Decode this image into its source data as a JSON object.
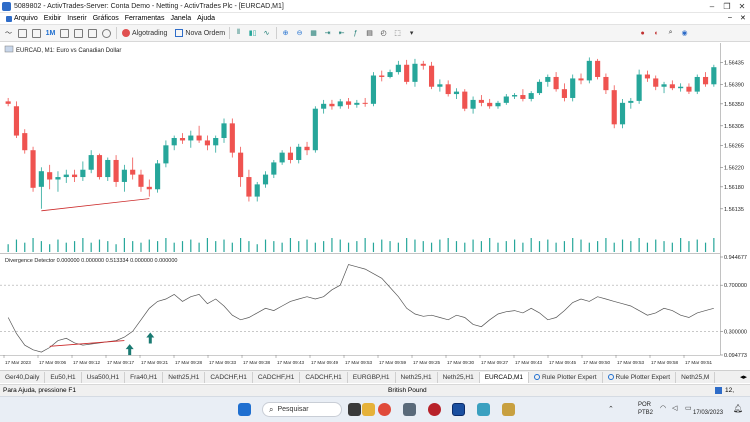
{
  "window": {
    "title": "5089802 - ActivTrades-Server: Conta Demo - Netting - ActivTrades Plc - [EURCAD,M1]"
  },
  "menu": {
    "items": [
      "Arquivo",
      "Exibir",
      "Inserir",
      "Gráficos",
      "Ferramentas",
      "Janela",
      "Ajuda"
    ]
  },
  "toolbar": {
    "timeframe": "1M",
    "algotrading": "Algotrading",
    "new_order": "Nova Ordem"
  },
  "chart": {
    "symbol_label": "EURCAD, M1:  Euro vs Canadian Dollar",
    "price_ticks": [
      "1.56435",
      "1.56390",
      "1.56350",
      "1.56305",
      "1.56265",
      "1.56220",
      "1.56180",
      "1.56135"
    ],
    "indicator_label": "Divergence Detector 0.000000 0.000000 0.513334 0.000000 0.000000",
    "indicator_ticks": [
      "0.944677",
      "0.700000",
      "0.300000",
      "0.094773"
    ],
    "time_labels": [
      "17 Mar 2023",
      "17 Mar 09:06",
      "17 Mar 09:12",
      "17 Mar 09:17",
      "17 Mar 09:21",
      "17 Mar 09:28",
      "17 Mar 09:33",
      "17 Mar 09:38",
      "17 Mar 09:43",
      "17 Mar 09:49",
      "17 Mar 09:53",
      "17 Mar 09:59",
      "17 Mar 09:25",
      "17 Mar 09:30",
      "17 Mar 09:27",
      "17 Mar 09:43",
      "17 Mar 09:45",
      "17 Mar 09:50",
      "17 Mar 09:53",
      "17 Mar 09:58",
      "17 Mar 09:51"
    ],
    "bull_color": "#26a69a",
    "bear_color": "#ef5350",
    "arrow_color": "#1a7a72"
  },
  "chart_data": {
    "type": "candlestick",
    "candles": [
      {
        "o": 1.56355,
        "h": 1.56362,
        "l": 1.56345,
        "c": 1.5635
      },
      {
        "o": 1.56345,
        "h": 1.56355,
        "l": 1.5628,
        "c": 1.56285
      },
      {
        "o": 1.5629,
        "h": 1.56298,
        "l": 1.56248,
        "c": 1.56255
      },
      {
        "o": 1.56255,
        "h": 1.56262,
        "l": 1.5617,
        "c": 1.56178
      },
      {
        "o": 1.5618,
        "h": 1.5622,
        "l": 1.56135,
        "c": 1.56212
      },
      {
        "o": 1.5621,
        "h": 1.56225,
        "l": 1.56175,
        "c": 1.56195
      },
      {
        "o": 1.56195,
        "h": 1.56212,
        "l": 1.5617,
        "c": 1.562
      },
      {
        "o": 1.562,
        "h": 1.56215,
        "l": 1.56188,
        "c": 1.56205
      },
      {
        "o": 1.56205,
        "h": 1.56215,
        "l": 1.5619,
        "c": 1.562
      },
      {
        "o": 1.562,
        "h": 1.56232,
        "l": 1.56192,
        "c": 1.56215
      },
      {
        "o": 1.56215,
        "h": 1.56255,
        "l": 1.56208,
        "c": 1.56245
      },
      {
        "o": 1.56245,
        "h": 1.56248,
        "l": 1.56195,
        "c": 1.562
      },
      {
        "o": 1.562,
        "h": 1.5624,
        "l": 1.56192,
        "c": 1.56235
      },
      {
        "o": 1.56235,
        "h": 1.56245,
        "l": 1.5618,
        "c": 1.5619
      },
      {
        "o": 1.5619,
        "h": 1.56225,
        "l": 1.5617,
        "c": 1.56215
      },
      {
        "o": 1.56215,
        "h": 1.5624,
        "l": 1.56195,
        "c": 1.56205
      },
      {
        "o": 1.56205,
        "h": 1.56215,
        "l": 1.5617,
        "c": 1.5618
      },
      {
        "o": 1.5618,
        "h": 1.56195,
        "l": 1.5616,
        "c": 1.56175
      },
      {
        "o": 1.56175,
        "h": 1.56235,
        "l": 1.56168,
        "c": 1.56228
      },
      {
        "o": 1.56228,
        "h": 1.56275,
        "l": 1.5622,
        "c": 1.56265
      },
      {
        "o": 1.56265,
        "h": 1.56285,
        "l": 1.56255,
        "c": 1.5628
      },
      {
        "o": 1.5628,
        "h": 1.5629,
        "l": 1.56268,
        "c": 1.56275
      },
      {
        "o": 1.56275,
        "h": 1.56295,
        "l": 1.5626,
        "c": 1.56285
      },
      {
        "o": 1.56285,
        "h": 1.56305,
        "l": 1.5627,
        "c": 1.56275
      },
      {
        "o": 1.56275,
        "h": 1.56285,
        "l": 1.56255,
        "c": 1.56265
      },
      {
        "o": 1.56265,
        "h": 1.56285,
        "l": 1.5625,
        "c": 1.5628
      },
      {
        "o": 1.5628,
        "h": 1.5632,
        "l": 1.5627,
        "c": 1.5631
      },
      {
        "o": 1.5631,
        "h": 1.5632,
        "l": 1.5624,
        "c": 1.5625
      },
      {
        "o": 1.5625,
        "h": 1.56262,
        "l": 1.5618,
        "c": 1.562
      },
      {
        "o": 1.562,
        "h": 1.56215,
        "l": 1.5615,
        "c": 1.5616
      },
      {
        "o": 1.5616,
        "h": 1.5619,
        "l": 1.5615,
        "c": 1.56185
      },
      {
        "o": 1.56185,
        "h": 1.56212,
        "l": 1.56178,
        "c": 1.56205
      },
      {
        "o": 1.56205,
        "h": 1.56235,
        "l": 1.56198,
        "c": 1.5623
      },
      {
        "o": 1.5623,
        "h": 1.56255,
        "l": 1.56225,
        "c": 1.5625
      },
      {
        "o": 1.5625,
        "h": 1.56262,
        "l": 1.56228,
        "c": 1.56235
      },
      {
        "o": 1.56235,
        "h": 1.56268,
        "l": 1.56228,
        "c": 1.56262
      },
      {
        "o": 1.56262,
        "h": 1.56272,
        "l": 1.56245,
        "c": 1.56255
      },
      {
        "o": 1.56255,
        "h": 1.56345,
        "l": 1.5625,
        "c": 1.5634
      },
      {
        "o": 1.5634,
        "h": 1.56358,
        "l": 1.5633,
        "c": 1.5635
      },
      {
        "o": 1.5635,
        "h": 1.56358,
        "l": 1.56338,
        "c": 1.56345
      },
      {
        "o": 1.56345,
        "h": 1.5636,
        "l": 1.5634,
        "c": 1.56355
      },
      {
        "o": 1.56355,
        "h": 1.56362,
        "l": 1.5634,
        "c": 1.56348
      },
      {
        "o": 1.56348,
        "h": 1.56358,
        "l": 1.56342,
        "c": 1.56352
      },
      {
        "o": 1.56352,
        "h": 1.56362,
        "l": 1.56344,
        "c": 1.5635
      },
      {
        "o": 1.5635,
        "h": 1.56415,
        "l": 1.56345,
        "c": 1.56408
      },
      {
        "o": 1.56408,
        "h": 1.56418,
        "l": 1.56396,
        "c": 1.56405
      },
      {
        "o": 1.56405,
        "h": 1.5642,
        "l": 1.56402,
        "c": 1.56415
      },
      {
        "o": 1.56415,
        "h": 1.56438,
        "l": 1.5641,
        "c": 1.5643
      },
      {
        "o": 1.5643,
        "h": 1.5644,
        "l": 1.5639,
        "c": 1.56395
      },
      {
        "o": 1.56395,
        "h": 1.56442,
        "l": 1.56385,
        "c": 1.56432
      },
      {
        "o": 1.56432,
        "h": 1.56438,
        "l": 1.5642,
        "c": 1.56428
      },
      {
        "o": 1.56428,
        "h": 1.56436,
        "l": 1.5638,
        "c": 1.56385
      },
      {
        "o": 1.56385,
        "h": 1.564,
        "l": 1.56375,
        "c": 1.5639
      },
      {
        "o": 1.5639,
        "h": 1.56398,
        "l": 1.56365,
        "c": 1.5637
      },
      {
        "o": 1.5637,
        "h": 1.56382,
        "l": 1.5636,
        "c": 1.56375
      },
      {
        "o": 1.56375,
        "h": 1.5638,
        "l": 1.56335,
        "c": 1.5634
      },
      {
        "o": 1.5634,
        "h": 1.56365,
        "l": 1.5633,
        "c": 1.56358
      },
      {
        "o": 1.56358,
        "h": 1.56368,
        "l": 1.56345,
        "c": 1.56352
      },
      {
        "o": 1.56352,
        "h": 1.5636,
        "l": 1.5634,
        "c": 1.56345
      },
      {
        "o": 1.56345,
        "h": 1.56356,
        "l": 1.5634,
        "c": 1.56352
      },
      {
        "o": 1.56352,
        "h": 1.5637,
        "l": 1.56348,
        "c": 1.56365
      },
      {
        "o": 1.56365,
        "h": 1.56372,
        "l": 1.5636,
        "c": 1.56368
      },
      {
        "o": 1.56368,
        "h": 1.5638,
        "l": 1.56355,
        "c": 1.5636
      },
      {
        "o": 1.5636,
        "h": 1.56376,
        "l": 1.56355,
        "c": 1.56372
      },
      {
        "o": 1.56372,
        "h": 1.564,
        "l": 1.56368,
        "c": 1.56395
      },
      {
        "o": 1.56395,
        "h": 1.5641,
        "l": 1.56385,
        "c": 1.56405
      },
      {
        "o": 1.56405,
        "h": 1.56415,
        "l": 1.56375,
        "c": 1.5638
      },
      {
        "o": 1.5638,
        "h": 1.56392,
        "l": 1.56355,
        "c": 1.56362
      },
      {
        "o": 1.56362,
        "h": 1.5641,
        "l": 1.56355,
        "c": 1.56402
      },
      {
        "o": 1.56402,
        "h": 1.56412,
        "l": 1.5639,
        "c": 1.56398
      },
      {
        "o": 1.56398,
        "h": 1.56445,
        "l": 1.56392,
        "c": 1.56438
      },
      {
        "o": 1.56438,
        "h": 1.56442,
        "l": 1.564,
        "c": 1.56405
      },
      {
        "o": 1.56405,
        "h": 1.56412,
        "l": 1.5637,
        "c": 1.56378
      },
      {
        "o": 1.56378,
        "h": 1.56388,
        "l": 1.563,
        "c": 1.56308
      },
      {
        "o": 1.56308,
        "h": 1.5636,
        "l": 1.563,
        "c": 1.56352
      },
      {
        "o": 1.56352,
        "h": 1.56362,
        "l": 1.5634,
        "c": 1.56356
      },
      {
        "o": 1.56356,
        "h": 1.5642,
        "l": 1.5635,
        "c": 1.5641
      },
      {
        "o": 1.5641,
        "h": 1.56418,
        "l": 1.56395,
        "c": 1.56402
      },
      {
        "o": 1.56402,
        "h": 1.56408,
        "l": 1.56378,
        "c": 1.56385
      },
      {
        "o": 1.56385,
        "h": 1.56395,
        "l": 1.56372,
        "c": 1.5639
      },
      {
        "o": 1.5639,
        "h": 1.56398,
        "l": 1.56378,
        "c": 1.56382
      },
      {
        "o": 1.56382,
        "h": 1.56392,
        "l": 1.56375,
        "c": 1.56385
      },
      {
        "o": 1.56385,
        "h": 1.56392,
        "l": 1.5637,
        "c": 1.56375
      },
      {
        "o": 1.56375,
        "h": 1.5641,
        "l": 1.5637,
        "c": 1.56405
      },
      {
        "o": 1.56405,
        "h": 1.56415,
        "l": 1.56385,
        "c": 1.5639
      },
      {
        "o": 1.5639,
        "h": 1.5643,
        "l": 1.56385,
        "c": 1.56425
      }
    ],
    "volumes": [
      5,
      8,
      6,
      9,
      7,
      5,
      8,
      6,
      7,
      9,
      6,
      8,
      7,
      5,
      9,
      7,
      6,
      8,
      7,
      9,
      6,
      7,
      8,
      6,
      9,
      7,
      8,
      6,
      9,
      7,
      5,
      8,
      7,
      6,
      9,
      7,
      8,
      6,
      7,
      9,
      8,
      6,
      7,
      9,
      6,
      8,
      7,
      6,
      9,
      8,
      7,
      6,
      8,
      9,
      7,
      6,
      8,
      7,
      9,
      6,
      7,
      8,
      6,
      9,
      7,
      8,
      6,
      7,
      9,
      8,
      6,
      7,
      9,
      6,
      8,
      7,
      9,
      6,
      8,
      7,
      6,
      9,
      7,
      8,
      6,
      9
    ],
    "oscillator": [
      0.42,
      0.28,
      0.18,
      0.14,
      0.12,
      0.16,
      0.22,
      0.24,
      0.2,
      0.18,
      0.19,
      0.2,
      0.21,
      0.22,
      0.25,
      0.3,
      0.4,
      0.5,
      0.56,
      0.58,
      0.62,
      0.56,
      0.6,
      0.62,
      0.54,
      0.58,
      0.52,
      0.44,
      0.4,
      0.42,
      0.46,
      0.5,
      0.48,
      0.52,
      0.56,
      0.58,
      0.6,
      0.58,
      0.6,
      0.66,
      0.7,
      0.88,
      0.86,
      0.84,
      0.8,
      0.76,
      0.68,
      0.6,
      0.5,
      0.45,
      0.43,
      0.44,
      0.42,
      0.4,
      0.44,
      0.42,
      0.36,
      0.34,
      0.4,
      0.45,
      0.47,
      0.48,
      0.46,
      0.5,
      0.46,
      0.4,
      0.42,
      0.48,
      0.55,
      0.58,
      0.56,
      0.6,
      0.58,
      0.56,
      0.54,
      0.52,
      0.48,
      0.44,
      0.46,
      0.5,
      0.48,
      0.44,
      0.42,
      0.46,
      0.48,
      0.5
    ],
    "ylim": [
      1.5611,
      1.5645
    ],
    "osc_ylim": [
      0.094773,
      0.944677
    ]
  },
  "tabs": [
    "Ger40,Daily",
    "Eu50,H1",
    "Usa500,H1",
    "Fra40,H1",
    "Neth25,H1",
    "CADCHF,H1",
    "CADCHF,H1",
    "CADCHF,H1",
    "EURGBP,H1",
    "Neth25,H1",
    "Neth25,H1",
    "EURCAD,M1",
    "Rule Plotter Expert",
    "Rule Plotter Expert",
    "Neth25,M"
  ],
  "active_tab": "EURCAD,M1",
  "status": {
    "help": "Para Ajuda, pressione F1",
    "center": "British Pound",
    "right": "12,"
  },
  "taskbar": {
    "search": "Pesquisar",
    "lang1": "POR",
    "lang2": "PTB2",
    "date": "17/03/2023"
  }
}
